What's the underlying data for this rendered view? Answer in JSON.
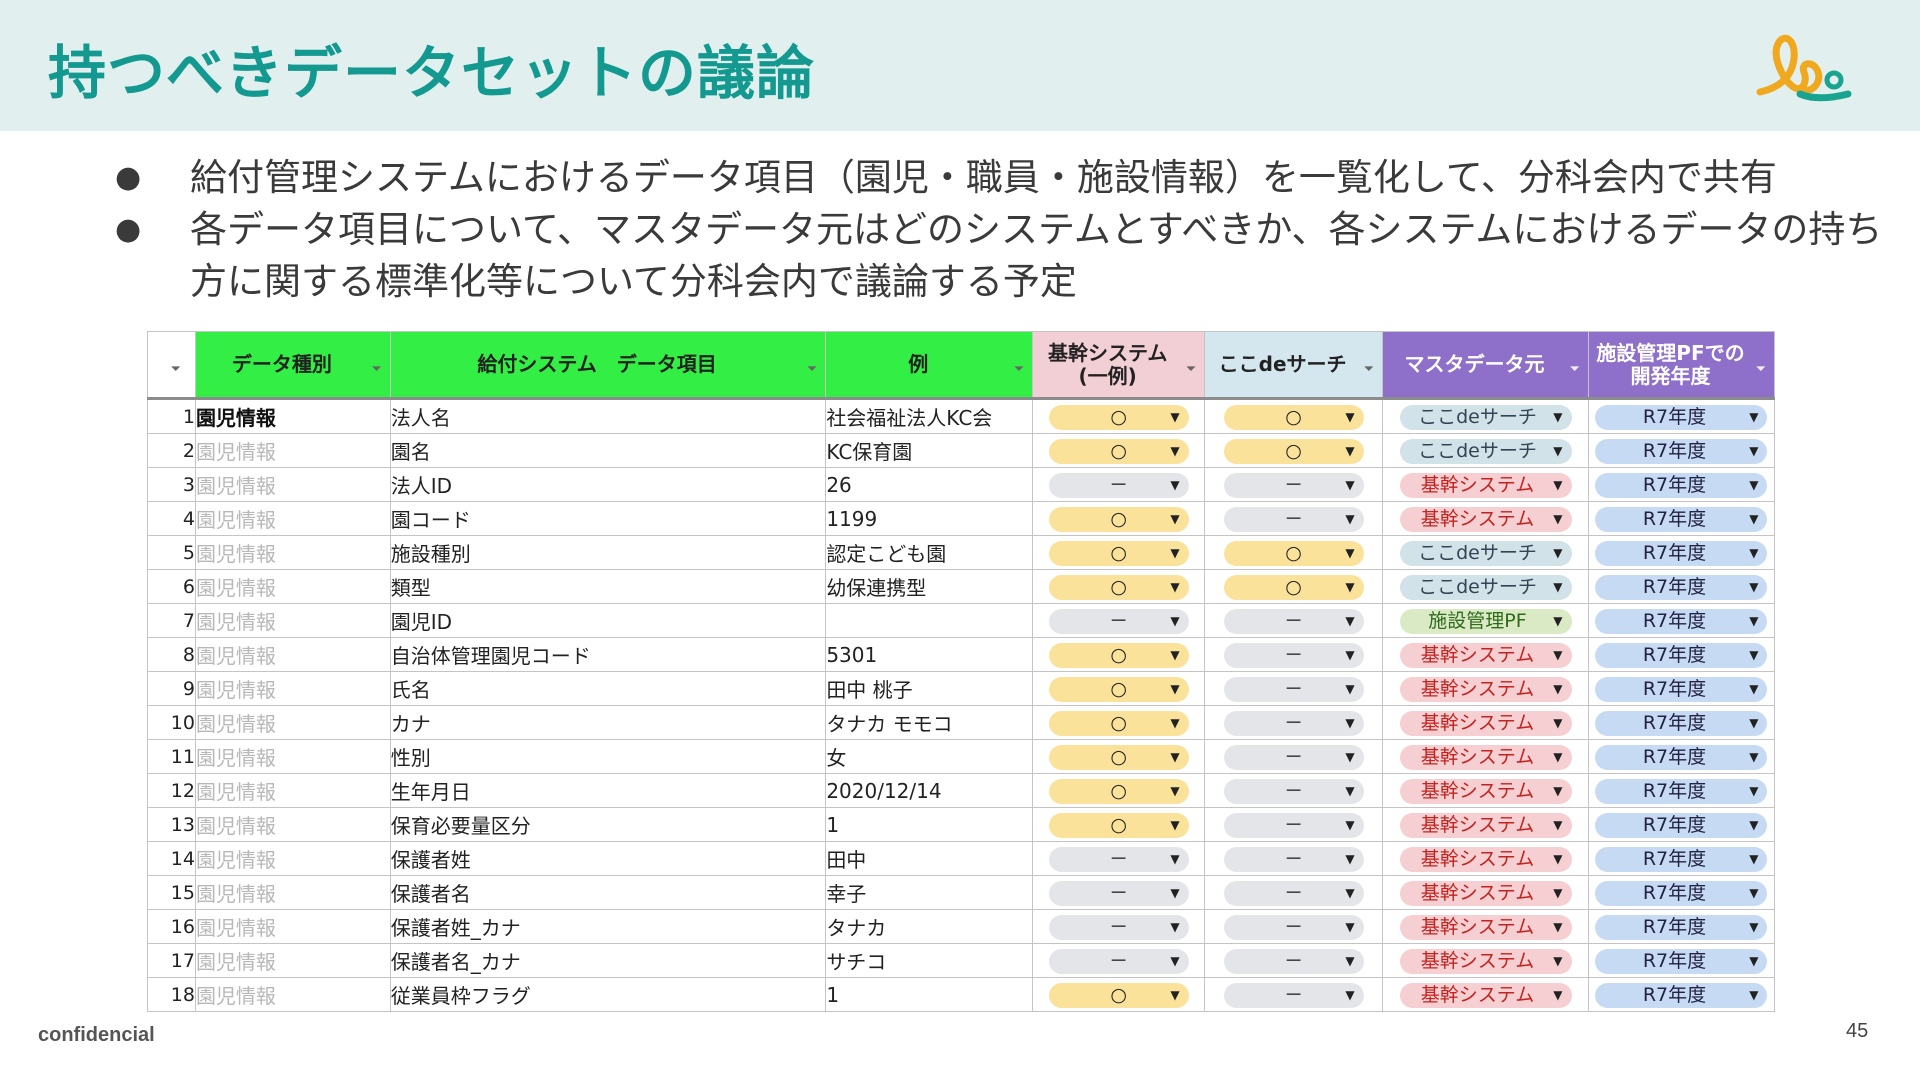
{
  "slide": {
    "title": "持つべきデータセットの議論",
    "bullets": [
      "給付管理システムにおけるデータ項目（園児・職員・施設情報）を一覧化して、分科会内で共有",
      "各データ項目について、マスタデータ元はどのシステムとすべきか、各システムにおけるデータの持ち方に関する標準化等について分科会内で議論する予定"
    ],
    "bullet_symbol": "●",
    "footer_left": "confidencial",
    "page_number": "45"
  },
  "colors": {
    "header_bg": "#e1f0ee",
    "title": "#13998f",
    "logo_orange": "#f0a81e",
    "logo_teal": "#19a48f"
  },
  "icons": {
    "filter": "filter-icon",
    "dropdown": "caret-down-icon",
    "logo": "brand-logo-icon"
  },
  "table": {
    "headers": {
      "datatype": "データ種別",
      "item": "給付システム　データ項目",
      "example": "例",
      "core": [
        "基幹システム",
        "(一例)"
      ],
      "kokode": "ここdeサーチ",
      "master": "マスタデータ元",
      "pf": [
        "施設管理PFでの",
        "開発年度"
      ]
    },
    "rows": [
      {
        "n": "1",
        "cat": "園児情報",
        "item": "法人名",
        "ex": "社会福祉法人KC会",
        "core": "○",
        "kokode": "○",
        "master": "ここdeサーチ",
        "mcolor": "teal",
        "pf": "R7年度"
      },
      {
        "n": "2",
        "cat": "園児情報",
        "item": "園名",
        "ex": "KC保育園",
        "core": "○",
        "kokode": "○",
        "master": "ここdeサーチ",
        "mcolor": "teal",
        "pf": "R7年度"
      },
      {
        "n": "3",
        "cat": "園児情報",
        "item": "法人ID",
        "ex": "26",
        "core": "－",
        "kokode": "－",
        "master": "基幹システム",
        "mcolor": "red",
        "pf": "R7年度"
      },
      {
        "n": "4",
        "cat": "園児情報",
        "item": "園コード",
        "ex": "1199",
        "core": "○",
        "kokode": "－",
        "master": "基幹システム",
        "mcolor": "red",
        "pf": "R7年度"
      },
      {
        "n": "5",
        "cat": "園児情報",
        "item": "施設種別",
        "ex": "認定こども園",
        "core": "○",
        "kokode": "○",
        "master": "ここdeサーチ",
        "mcolor": "teal",
        "pf": "R7年度"
      },
      {
        "n": "6",
        "cat": "園児情報",
        "item": "類型",
        "ex": "幼保連携型",
        "core": "○",
        "kokode": "○",
        "master": "ここdeサーチ",
        "mcolor": "teal",
        "pf": "R7年度"
      },
      {
        "n": "7",
        "cat": "園児情報",
        "item": "園児ID",
        "ex": "",
        "core": "－",
        "kokode": "－",
        "master": "施設管理PF",
        "mcolor": "green",
        "pf": "R7年度"
      },
      {
        "n": "8",
        "cat": "園児情報",
        "item": "自治体管理園児コード",
        "ex": "5301",
        "core": "○",
        "kokode": "－",
        "master": "基幹システム",
        "mcolor": "red",
        "pf": "R7年度"
      },
      {
        "n": "9",
        "cat": "園児情報",
        "item": "氏名",
        "ex": "田中 桃子",
        "core": "○",
        "kokode": "－",
        "master": "基幹システム",
        "mcolor": "red",
        "pf": "R7年度"
      },
      {
        "n": "10",
        "cat": "園児情報",
        "item": "カナ",
        "ex": "タナカ モモコ",
        "core": "○",
        "kokode": "－",
        "master": "基幹システム",
        "mcolor": "red",
        "pf": "R7年度"
      },
      {
        "n": "11",
        "cat": "園児情報",
        "item": "性別",
        "ex": "女",
        "core": "○",
        "kokode": "－",
        "master": "基幹システム",
        "mcolor": "red",
        "pf": "R7年度"
      },
      {
        "n": "12",
        "cat": "園児情報",
        "item": "生年月日",
        "ex": "2020/12/14",
        "core": "○",
        "kokode": "－",
        "master": "基幹システム",
        "mcolor": "red",
        "pf": "R7年度"
      },
      {
        "n": "13",
        "cat": "園児情報",
        "item": "保育必要量区分",
        "ex": "1",
        "core": "○",
        "kokode": "－",
        "master": "基幹システム",
        "mcolor": "red",
        "pf": "R7年度"
      },
      {
        "n": "14",
        "cat": "園児情報",
        "item": "保護者姓",
        "ex": "田中",
        "core": "－",
        "kokode": "－",
        "master": "基幹システム",
        "mcolor": "red",
        "pf": "R7年度"
      },
      {
        "n": "15",
        "cat": "園児情報",
        "item": "保護者名",
        "ex": "幸子",
        "core": "－",
        "kokode": "－",
        "master": "基幹システム",
        "mcolor": "red",
        "pf": "R7年度"
      },
      {
        "n": "16",
        "cat": "園児情報",
        "item": "保護者姓_カナ",
        "ex": "タナカ",
        "core": "－",
        "kokode": "－",
        "master": "基幹システム",
        "mcolor": "red",
        "pf": "R7年度"
      },
      {
        "n": "17",
        "cat": "園児情報",
        "item": "保護者名_カナ",
        "ex": "サチコ",
        "core": "－",
        "kokode": "－",
        "master": "基幹システム",
        "mcolor": "red",
        "pf": "R7年度"
      },
      {
        "n": "18",
        "cat": "園児情報",
        "item": "従業員枠フラグ",
        "ex": "1",
        "core": "○",
        "kokode": "－",
        "master": "基幹システム",
        "mcolor": "red",
        "pf": "R7年度"
      }
    ]
  }
}
